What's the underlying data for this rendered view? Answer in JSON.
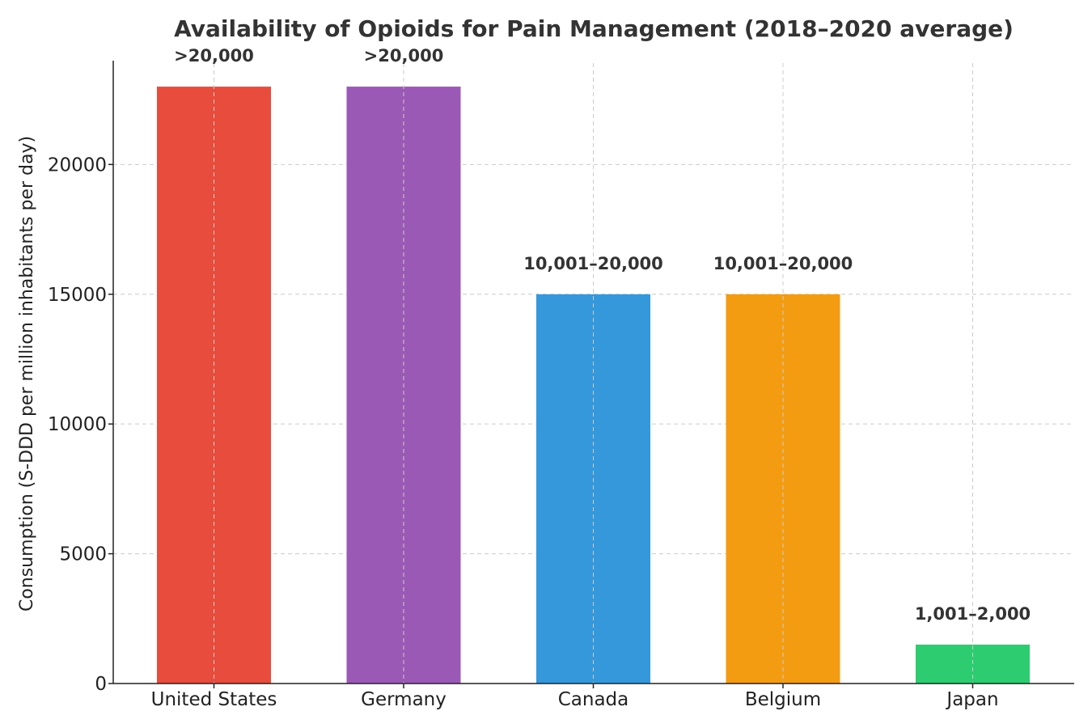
{
  "chart_data": {
    "type": "bar",
    "title": "Availability of Opioids for Pain Management (2018–2020 average)",
    "xlabel": "",
    "ylabel": "Consumption (S-DDD per million inhabitants per day)",
    "categories": [
      "United States",
      "Germany",
      "Canada",
      "Belgium",
      "Japan"
    ],
    "values": [
      23000,
      23000,
      15000,
      15000,
      1500
    ],
    "data_labels": [
      ">20,000",
      ">20,000",
      "10,001–20,000",
      "10,001–20,000",
      "1,001–2,000"
    ],
    "colors": [
      "#e74c3c",
      "#9b59b6",
      "#3498db",
      "#f39c12",
      "#2ecc71"
    ],
    "ylim": [
      0,
      24000
    ],
    "yticks": [
      0,
      5000,
      10000,
      15000,
      20000
    ],
    "ytick_labels": [
      "0",
      "5000",
      "10000",
      "15000",
      "20000"
    ],
    "grid": true
  }
}
